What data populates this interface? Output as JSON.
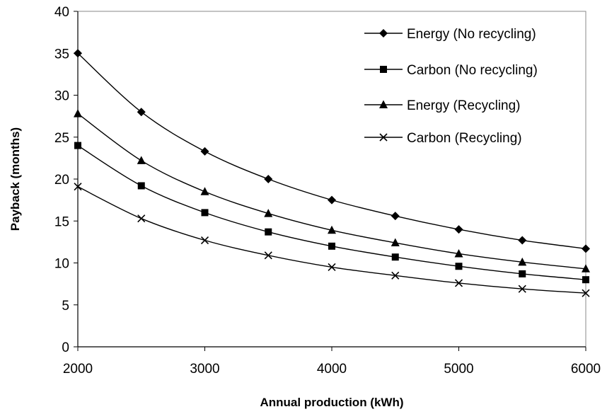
{
  "chart_data": {
    "type": "line",
    "title": "",
    "xlabel": "Annual production (kWh)",
    "ylabel": "Payback (months)",
    "xlim": [
      2000,
      6000
    ],
    "ylim": [
      0,
      40
    ],
    "xticks": [
      2000,
      3000,
      4000,
      5000,
      6000
    ],
    "yticks": [
      0,
      5,
      10,
      15,
      20,
      25,
      30,
      35,
      40
    ],
    "grid": false,
    "legend_position": "top-right",
    "x": [
      2000,
      2500,
      3000,
      3500,
      4000,
      4500,
      5000,
      5500,
      6000
    ],
    "series": [
      {
        "name": "Energy (No recycling)",
        "marker": "diamond",
        "values": [
          35.0,
          28.0,
          23.3,
          20.0,
          17.5,
          15.6,
          14.0,
          12.7,
          11.7
        ]
      },
      {
        "name": "Carbon (No recycling)",
        "marker": "square",
        "values": [
          24.0,
          19.2,
          16.0,
          13.7,
          12.0,
          10.7,
          9.6,
          8.7,
          8.0
        ]
      },
      {
        "name": "Energy (Recycling)",
        "marker": "triangle",
        "values": [
          27.8,
          22.2,
          18.5,
          15.9,
          13.9,
          12.4,
          11.1,
          10.1,
          9.3
        ]
      },
      {
        "name": "Carbon (Recycling)",
        "marker": "x",
        "values": [
          19.1,
          15.3,
          12.7,
          10.9,
          9.5,
          8.5,
          7.6,
          6.9,
          6.4
        ]
      }
    ]
  }
}
